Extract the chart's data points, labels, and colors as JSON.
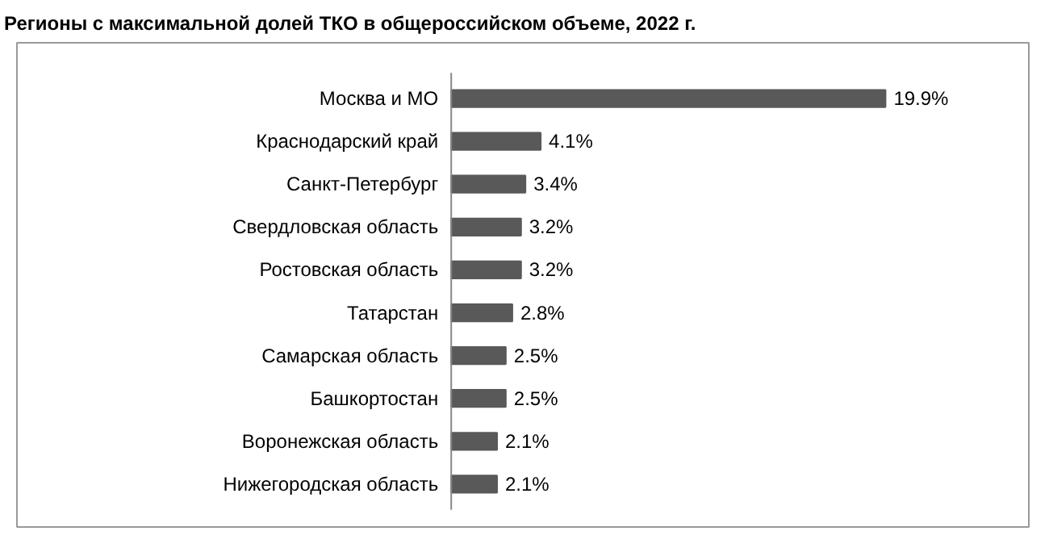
{
  "chart_data": {
    "type": "bar",
    "orientation": "horizontal",
    "title": "Регионы с максимальной долей ТКО в общероссийском объеме, 2022 г.",
    "categories": [
      "Москва и МО",
      "Краснодарский край",
      "Санкт-Петербург",
      "Свердловская область",
      "Ростовская область",
      "Татарстан",
      "Самарская область",
      "Башкортостан",
      "Воронежская область",
      "Нижегородская область"
    ],
    "values": [
      19.9,
      4.1,
      3.4,
      3.2,
      3.2,
      2.8,
      2.5,
      2.5,
      2.1,
      2.1
    ],
    "value_labels": [
      "19.9%",
      "4.1%",
      "3.4%",
      "3.2%",
      "3.2%",
      "2.8%",
      "2.5%",
      "2.5%",
      "2.1%",
      "2.1%"
    ],
    "color": "#595959",
    "grid": false
  }
}
